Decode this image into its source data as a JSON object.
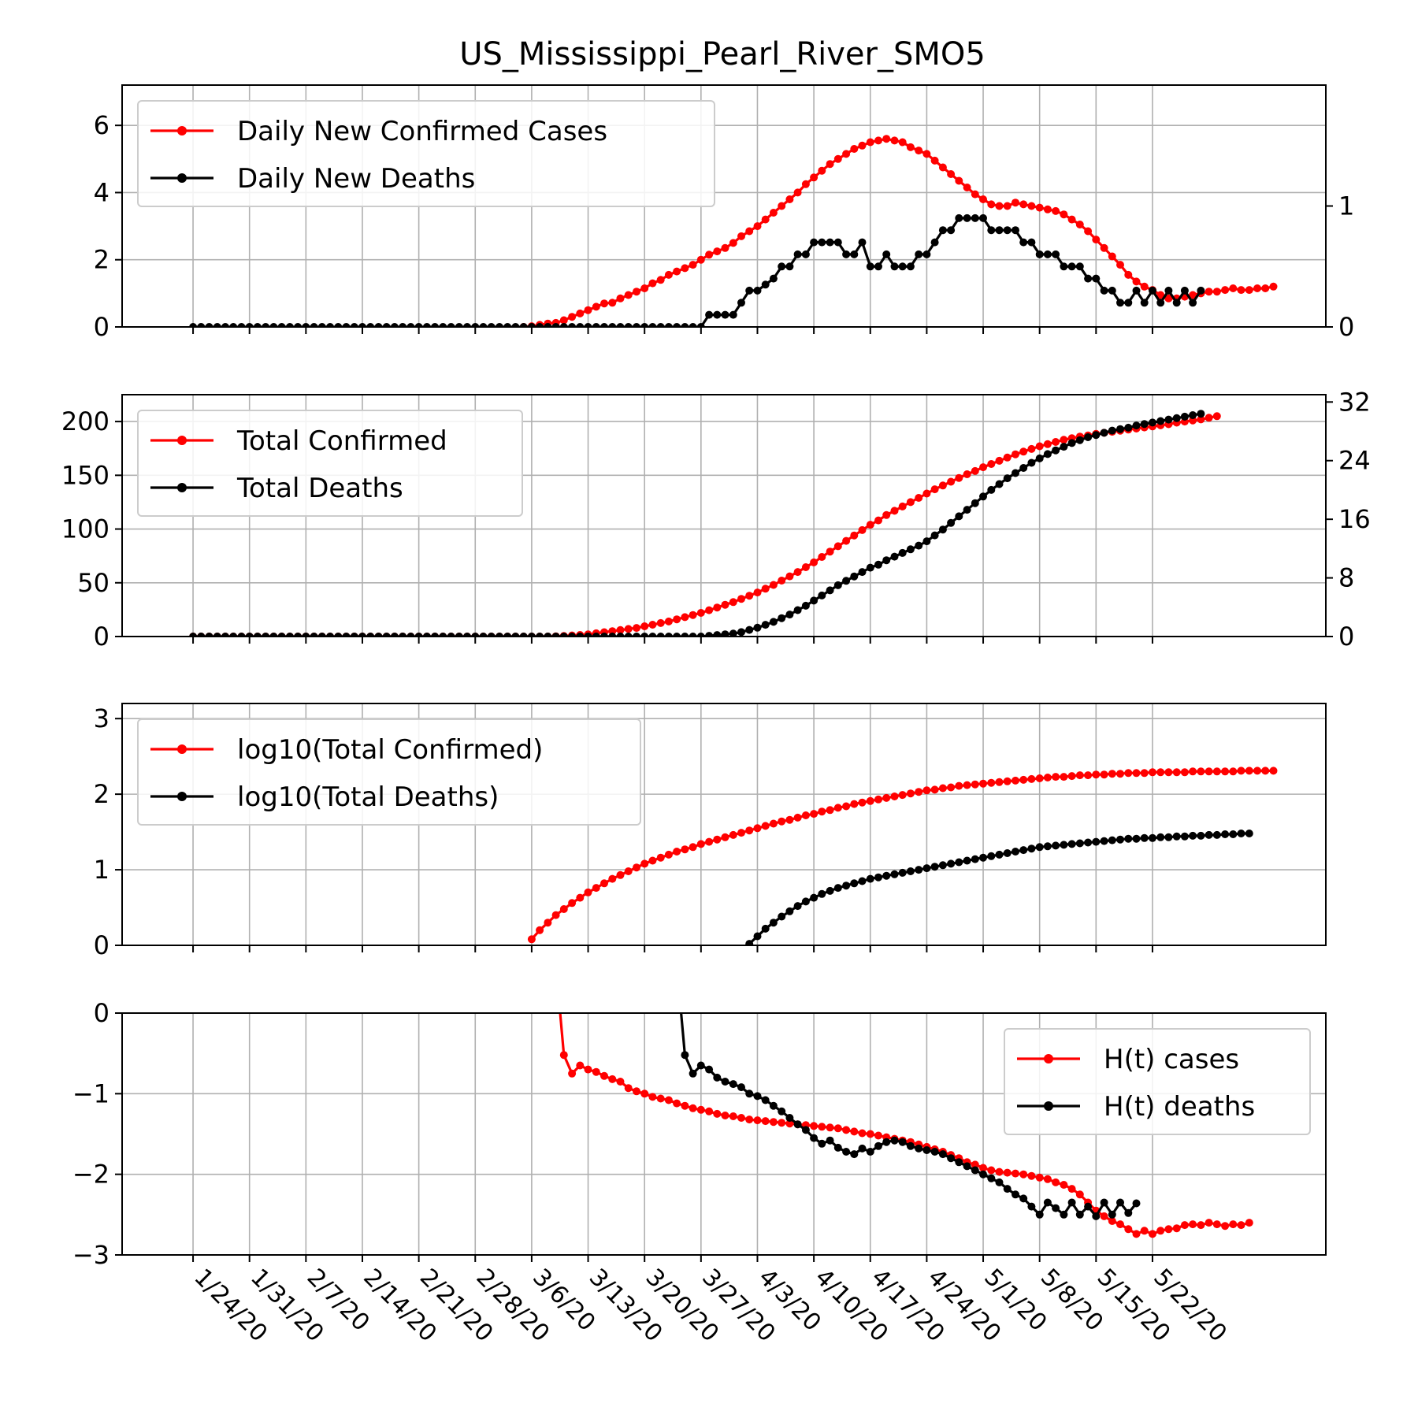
{
  "title": "US_Mississippi_Pearl_River_SMO5",
  "chart_data": [
    {
      "type": "line",
      "id": "daily",
      "start_date": "2020-01-24",
      "x_tick_labels": [
        "1/24/20",
        "1/31/20",
        "2/7/20",
        "2/14/20",
        "2/21/20",
        "2/28/20",
        "3/6/20",
        "3/13/20",
        "3/20/20",
        "3/27/20",
        "4/3/20",
        "4/10/20",
        "4/17/20",
        "4/24/20",
        "5/1/20",
        "5/8/20",
        "5/15/20",
        "5/22/20"
      ],
      "ylim": [
        0,
        7.2
      ],
      "yticks": [
        "0",
        "2",
        "4",
        "6"
      ],
      "ytick_values": [
        0,
        2,
        4,
        6
      ],
      "y2lim": [
        0,
        2.0
      ],
      "y2ticks": [
        "0",
        "1"
      ],
      "y2tick_values": [
        0,
        1
      ],
      "legend_position": "upper left",
      "grid": true,
      "series": [
        {
          "name": "Daily New Confirmed Cases",
          "color": "#ff0000",
          "axis": "left",
          "x_start": "2020-03-05",
          "values": [
            0.0,
            0.02,
            0.06,
            0.1,
            0.12,
            0.2,
            0.3,
            0.4,
            0.5,
            0.6,
            0.7,
            0.72,
            0.85,
            0.95,
            1.05,
            1.15,
            1.3,
            1.4,
            1.55,
            1.65,
            1.75,
            1.85,
            2.0,
            2.15,
            2.25,
            2.35,
            2.5,
            2.7,
            2.85,
            3.0,
            3.2,
            3.4,
            3.6,
            3.8,
            4.0,
            4.25,
            4.45,
            4.65,
            4.85,
            5.0,
            5.15,
            5.3,
            5.4,
            5.5,
            5.55,
            5.6,
            5.55,
            5.5,
            5.35,
            5.25,
            5.15,
            4.95,
            4.75,
            4.55,
            4.35,
            4.15,
            3.95,
            3.8,
            3.65,
            3.6,
            3.6,
            3.7,
            3.65,
            3.6,
            3.55,
            3.5,
            3.45,
            3.35,
            3.2,
            3.05,
            2.85,
            2.6,
            2.35,
            2.1,
            1.85,
            1.55,
            1.35,
            1.2,
            1.1,
            0.95,
            0.85,
            0.85,
            0.9,
            0.95,
            1.0,
            1.05,
            1.05,
            1.1,
            1.15,
            1.1,
            1.1,
            1.15,
            1.15,
            1.2
          ]
        },
        {
          "name": "Daily New Deaths",
          "color": "#000000",
          "axis": "right",
          "x_start": "2020-01-24",
          "values": [
            0,
            0,
            0,
            0,
            0,
            0,
            0,
            0,
            0,
            0,
            0,
            0,
            0,
            0,
            0,
            0,
            0,
            0,
            0,
            0,
            0,
            0,
            0,
            0,
            0,
            0,
            0,
            0,
            0,
            0,
            0,
            0,
            0,
            0,
            0,
            0,
            0,
            0,
            0,
            0,
            0,
            0,
            0,
            0,
            0,
            0,
            0,
            0,
            0,
            0,
            0,
            0,
            0,
            0,
            0,
            0,
            0,
            0,
            0,
            0,
            0,
            0,
            0,
            0,
            0.1,
            0.1,
            0.1,
            0.1,
            0.2,
            0.3,
            0.3,
            0.35,
            0.4,
            0.5,
            0.5,
            0.6,
            0.6,
            0.7,
            0.7,
            0.7,
            0.7,
            0.6,
            0.6,
            0.7,
            0.5,
            0.5,
            0.6,
            0.5,
            0.5,
            0.5,
            0.6,
            0.6,
            0.7,
            0.8,
            0.8,
            0.9,
            0.9,
            0.9,
            0.9,
            0.8,
            0.8,
            0.8,
            0.8,
            0.7,
            0.7,
            0.6,
            0.6,
            0.6,
            0.5,
            0.5,
            0.5,
            0.4,
            0.4,
            0.3,
            0.3,
            0.2,
            0.2,
            0.3,
            0.2,
            0.3,
            0.2,
            0.3,
            0.2,
            0.3,
            0.2,
            0.3
          ]
        }
      ]
    },
    {
      "type": "line",
      "id": "total",
      "ylim": [
        0,
        225
      ],
      "yticks": [
        "0",
        "50",
        "100",
        "150",
        "200"
      ],
      "ytick_values": [
        0,
        50,
        100,
        150,
        200
      ],
      "y2lim": [
        0,
        33
      ],
      "y2ticks": [
        "0",
        "8",
        "16",
        "24",
        "32"
      ],
      "y2tick_values": [
        0,
        8,
        16,
        24,
        32
      ],
      "legend_position": "upper left",
      "grid": true,
      "series": [
        {
          "name": "Total Confirmed",
          "color": "#ff0000",
          "axis": "left",
          "x_start": "2020-01-24",
          "values": [
            0,
            0,
            0,
            0,
            0,
            0,
            0,
            0,
            0,
            0,
            0,
            0,
            0,
            0,
            0,
            0,
            0,
            0,
            0,
            0,
            0,
            0,
            0,
            0,
            0,
            0,
            0,
            0,
            0,
            0,
            0,
            0,
            0,
            0,
            0,
            0,
            0,
            0,
            0,
            0,
            0,
            0,
            0,
            0,
            0,
            0.2,
            0.5,
            1,
            1.5,
            2,
            3,
            4,
            5,
            6,
            7,
            8,
            9.5,
            11,
            12.5,
            14,
            16,
            18,
            20,
            22,
            24.5,
            27,
            29.5,
            32,
            35,
            38,
            41,
            44.5,
            48,
            52,
            56,
            60,
            64.5,
            69,
            74,
            79,
            84,
            89,
            94,
            99,
            104,
            108,
            113,
            117,
            121,
            125,
            129,
            133,
            137,
            140.5,
            144,
            147.5,
            151,
            154,
            157.5,
            160.5,
            163.5,
            166.5,
            169.5,
            172,
            174.5,
            177,
            179,
            181,
            183,
            184.5,
            186,
            187,
            188.5,
            189.5,
            190.5,
            191.5,
            192.5,
            193.5,
            194.5,
            195.5,
            196.5,
            197.5,
            199,
            200,
            201,
            202,
            203.5,
            205
          ]
        },
        {
          "name": "Total Deaths",
          "color": "#000000",
          "axis": "right",
          "x_start": "2020-01-24",
          "values": [
            0,
            0,
            0,
            0,
            0,
            0,
            0,
            0,
            0,
            0,
            0,
            0,
            0,
            0,
            0,
            0,
            0,
            0,
            0,
            0,
            0,
            0,
            0,
            0,
            0,
            0,
            0,
            0,
            0,
            0,
            0,
            0,
            0,
            0,
            0,
            0,
            0,
            0,
            0,
            0,
            0,
            0,
            0,
            0,
            0,
            0,
            0,
            0,
            0,
            0,
            0,
            0,
            0,
            0,
            0,
            0,
            0,
            0,
            0,
            0,
            0,
            0,
            0,
            0,
            0.1,
            0.2,
            0.3,
            0.4,
            0.6,
            0.9,
            1.2,
            1.6,
            2,
            2.5,
            3,
            3.6,
            4.2,
            4.9,
            5.6,
            6.3,
            7,
            7.6,
            8.2,
            8.8,
            9.4,
            9.8,
            10.4,
            10.9,
            11.4,
            11.9,
            12.4,
            13,
            13.8,
            14.6,
            15.5,
            16.4,
            17.3,
            18.2,
            19.1,
            20,
            20.8,
            21.6,
            22.3,
            23,
            23.7,
            24.3,
            24.9,
            25.4,
            25.9,
            26.4,
            26.8,
            27.2,
            27.5,
            27.8,
            28.1,
            28.3,
            28.5,
            28.8,
            29,
            29.2,
            29.4,
            29.6,
            29.8,
            30,
            30.2,
            30.4
          ]
        }
      ]
    },
    {
      "type": "line",
      "id": "log",
      "ylim": [
        0,
        3.2
      ],
      "yticks": [
        "0",
        "1",
        "2",
        "3"
      ],
      "ytick_values": [
        0,
        1,
        2,
        3
      ],
      "legend_position": "upper left",
      "grid": true,
      "series": [
        {
          "name": "log10(Total Confirmed)",
          "color": "#ff0000",
          "axis": "left",
          "x_start": "2020-03-06",
          "values": [
            0.08,
            0.2,
            0.3,
            0.4,
            0.48,
            0.56,
            0.63,
            0.7,
            0.76,
            0.82,
            0.88,
            0.93,
            0.98,
            1.03,
            1.08,
            1.12,
            1.16,
            1.2,
            1.24,
            1.27,
            1.3,
            1.34,
            1.37,
            1.4,
            1.43,
            1.46,
            1.49,
            1.52,
            1.55,
            1.58,
            1.61,
            1.64,
            1.66,
            1.69,
            1.72,
            1.74,
            1.77,
            1.79,
            1.82,
            1.84,
            1.87,
            1.89,
            1.91,
            1.93,
            1.95,
            1.97,
            1.99,
            2.01,
            2.03,
            2.05,
            2.06,
            2.08,
            2.09,
            2.11,
            2.12,
            2.13,
            2.14,
            2.15,
            2.16,
            2.17,
            2.18,
            2.19,
            2.2,
            2.21,
            2.22,
            2.23,
            2.23,
            2.24,
            2.25,
            2.25,
            2.26,
            2.26,
            2.27,
            2.27,
            2.28,
            2.28,
            2.28,
            2.29,
            2.29,
            2.29,
            2.29,
            2.29,
            2.3,
            2.3,
            2.3,
            2.3,
            2.3,
            2.3,
            2.31,
            2.31,
            2.31,
            2.31,
            2.31
          ]
        },
        {
          "name": "log10(Total Deaths)",
          "color": "#000000",
          "axis": "left",
          "x_start": "2020-04-02",
          "values": [
            0.02,
            0.12,
            0.22,
            0.3,
            0.38,
            0.45,
            0.52,
            0.58,
            0.63,
            0.68,
            0.72,
            0.76,
            0.79,
            0.82,
            0.85,
            0.88,
            0.9,
            0.92,
            0.94,
            0.96,
            0.98,
            1.0,
            1.02,
            1.04,
            1.06,
            1.08,
            1.1,
            1.12,
            1.14,
            1.16,
            1.18,
            1.2,
            1.22,
            1.24,
            1.26,
            1.28,
            1.3,
            1.31,
            1.32,
            1.33,
            1.34,
            1.35,
            1.36,
            1.37,
            1.38,
            1.39,
            1.4,
            1.41,
            1.41,
            1.42,
            1.42,
            1.43,
            1.43,
            1.44,
            1.44,
            1.45,
            1.45,
            1.46,
            1.46,
            1.47,
            1.47,
            1.48,
            1.48
          ]
        }
      ]
    },
    {
      "type": "line",
      "id": "hurst",
      "ylim": [
        -3,
        0
      ],
      "yticks": [
        "0",
        "−1",
        "−2",
        "−3"
      ],
      "ytick_values": [
        0,
        -1,
        -2,
        -3
      ],
      "legend_position": "upper right",
      "grid": true,
      "series": [
        {
          "name": "H(t) cases",
          "color": "#ff0000",
          "axis": "left",
          "x_start": "2020-03-09",
          "values": [
            0.6,
            -0.52,
            -0.75,
            -0.65,
            -0.7,
            -0.73,
            -0.78,
            -0.82,
            -0.85,
            -0.93,
            -0.97,
            -1.0,
            -1.04,
            -1.06,
            -1.08,
            -1.12,
            -1.15,
            -1.18,
            -1.2,
            -1.22,
            -1.25,
            -1.27,
            -1.28,
            -1.3,
            -1.32,
            -1.33,
            -1.34,
            -1.35,
            -1.36,
            -1.37,
            -1.38,
            -1.39,
            -1.4,
            -1.41,
            -1.42,
            -1.43,
            -1.45,
            -1.47,
            -1.49,
            -1.5,
            -1.52,
            -1.54,
            -1.56,
            -1.58,
            -1.6,
            -1.63,
            -1.66,
            -1.69,
            -1.72,
            -1.76,
            -1.8,
            -1.85,
            -1.88,
            -1.92,
            -1.95,
            -1.97,
            -1.98,
            -1.99,
            -2.0,
            -2.02,
            -2.04,
            -2.06,
            -2.1,
            -2.13,
            -2.18,
            -2.25,
            -2.35,
            -2.45,
            -2.52,
            -2.58,
            -2.62,
            -2.68,
            -2.74,
            -2.7,
            -2.74,
            -2.7,
            -2.68,
            -2.67,
            -2.63,
            -2.62,
            -2.63,
            -2.6,
            -2.62,
            -2.64,
            -2.62,
            -2.63,
            -2.6
          ]
        },
        {
          "name": "H(t) deaths",
          "color": "#000000",
          "axis": "left",
          "x_start": "2020-03-24",
          "values": [
            0.6,
            -0.52,
            -0.75,
            -0.65,
            -0.7,
            -0.8,
            -0.85,
            -0.88,
            -0.92,
            -1.0,
            -1.03,
            -1.08,
            -1.15,
            -1.22,
            -1.3,
            -1.38,
            -1.45,
            -1.55,
            -1.62,
            -1.58,
            -1.67,
            -1.72,
            -1.75,
            -1.68,
            -1.72,
            -1.65,
            -1.6,
            -1.58,
            -1.6,
            -1.65,
            -1.68,
            -1.7,
            -1.72,
            -1.75,
            -1.8,
            -1.85,
            -1.9,
            -1.95,
            -2.0,
            -2.05,
            -2.1,
            -2.18,
            -2.25,
            -2.3,
            -2.4,
            -2.5,
            -2.35,
            -2.42,
            -2.5,
            -2.35,
            -2.5,
            -2.4,
            -2.52,
            -2.35,
            -2.5,
            -2.35,
            -2.48,
            -2.36
          ]
        }
      ]
    }
  ]
}
